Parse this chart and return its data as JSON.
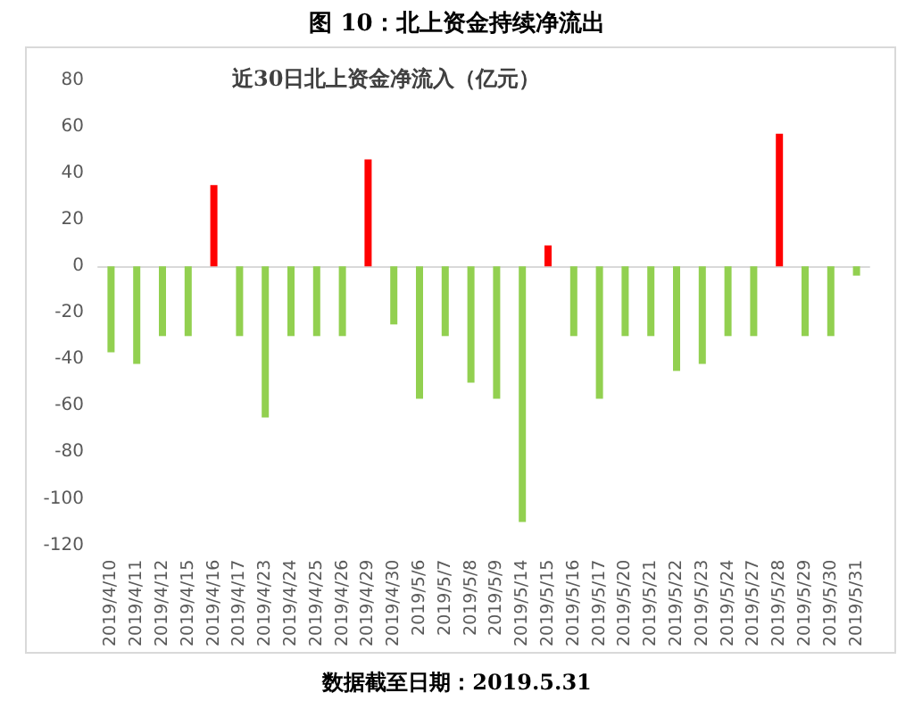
{
  "chart_data": {
    "type": "bar",
    "title": "图 10：北上资金持续净流出",
    "subtitle": "近30日北上资金净流入（亿元）",
    "categories": [
      "2019/4/10",
      "2019/4/11",
      "2019/4/12",
      "2019/4/15",
      "2019/4/16",
      "2019/4/17",
      "2019/4/23",
      "2019/4/24",
      "2019/4/25",
      "2019/4/26",
      "2019/4/29",
      "2019/4/30",
      "2019/5/6",
      "2019/5/7",
      "2019/5/8",
      "2019/5/9",
      "2019/5/14",
      "2019/5/15",
      "2019/5/16",
      "2019/5/17",
      "2019/5/20",
      "2019/5/21",
      "2019/5/22",
      "2019/5/23",
      "2019/5/24",
      "2019/5/27",
      "2019/5/28",
      "2019/5/29",
      "2019/5/30",
      "2019/5/31"
    ],
    "values": [
      -37,
      -42,
      -30,
      -30,
      35,
      -30,
      -65,
      -30,
      -30,
      -30,
      46,
      -25,
      -57,
      -30,
      -50,
      -57,
      -110,
      9,
      -30,
      -57,
      -30,
      -30,
      -45,
      -42,
      -30,
      -30,
      57,
      -30,
      -30,
      -4
    ],
    "colors": [
      "#92d050",
      "#92d050",
      "#92d050",
      "#92d050",
      "#ff0000",
      "#92d050",
      "#92d050",
      "#92d050",
      "#92d050",
      "#92d050",
      "#ff0000",
      "#92d050",
      "#92d050",
      "#92d050",
      "#92d050",
      "#92d050",
      "#92d050",
      "#ff0000",
      "#92d050",
      "#92d050",
      "#92d050",
      "#92d050",
      "#92d050",
      "#92d050",
      "#92d050",
      "#92d050",
      "#ff0000",
      "#92d050",
      "#92d050",
      "#92d050"
    ],
    "ylim": [
      -120,
      80
    ],
    "yticks": [
      -120,
      -100,
      -80,
      -60,
      -40,
      -20,
      0,
      20,
      40,
      60,
      80
    ],
    "annotations": [
      "数据截至日期：2019.5.31"
    ]
  }
}
